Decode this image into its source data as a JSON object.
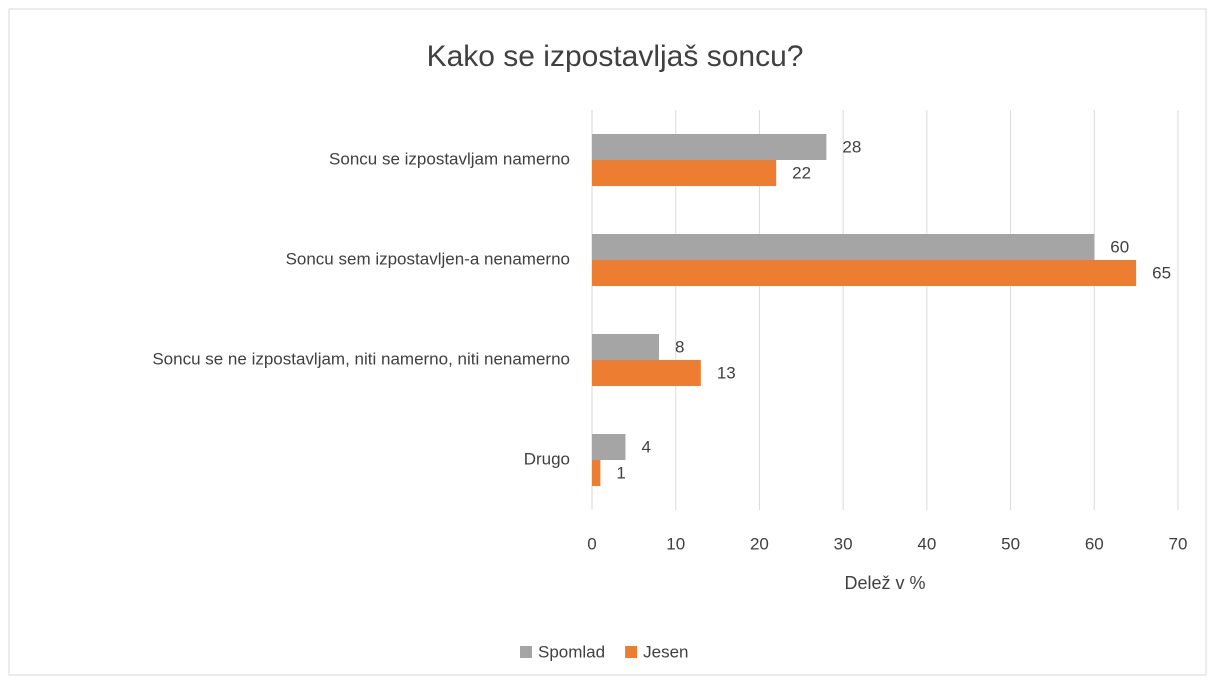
{
  "chart_data": {
    "type": "bar",
    "orientation": "horizontal",
    "title": "Kako se izpostavljaš soncu?",
    "x_label": "Delež v %",
    "categories": [
      "Soncu se izpostavljam namerno",
      "Soncu sem izpostavljen-a nenamerno",
      "Soncu se ne izpostavljam, niti namerno, niti nenamerno",
      "Drugo"
    ],
    "series": [
      {
        "name": "Spomlad",
        "color": "#a5a5a5",
        "values": [
          28,
          60,
          8,
          4
        ]
      },
      {
        "name": "Jesen",
        "color": "#ed7d31",
        "values": [
          22,
          65,
          13,
          1
        ]
      }
    ],
    "xlim": [
      0,
      70
    ],
    "xticks": [
      0,
      10,
      20,
      30,
      40,
      50,
      60,
      70
    ],
    "grid": true,
    "legend": "bottom"
  }
}
